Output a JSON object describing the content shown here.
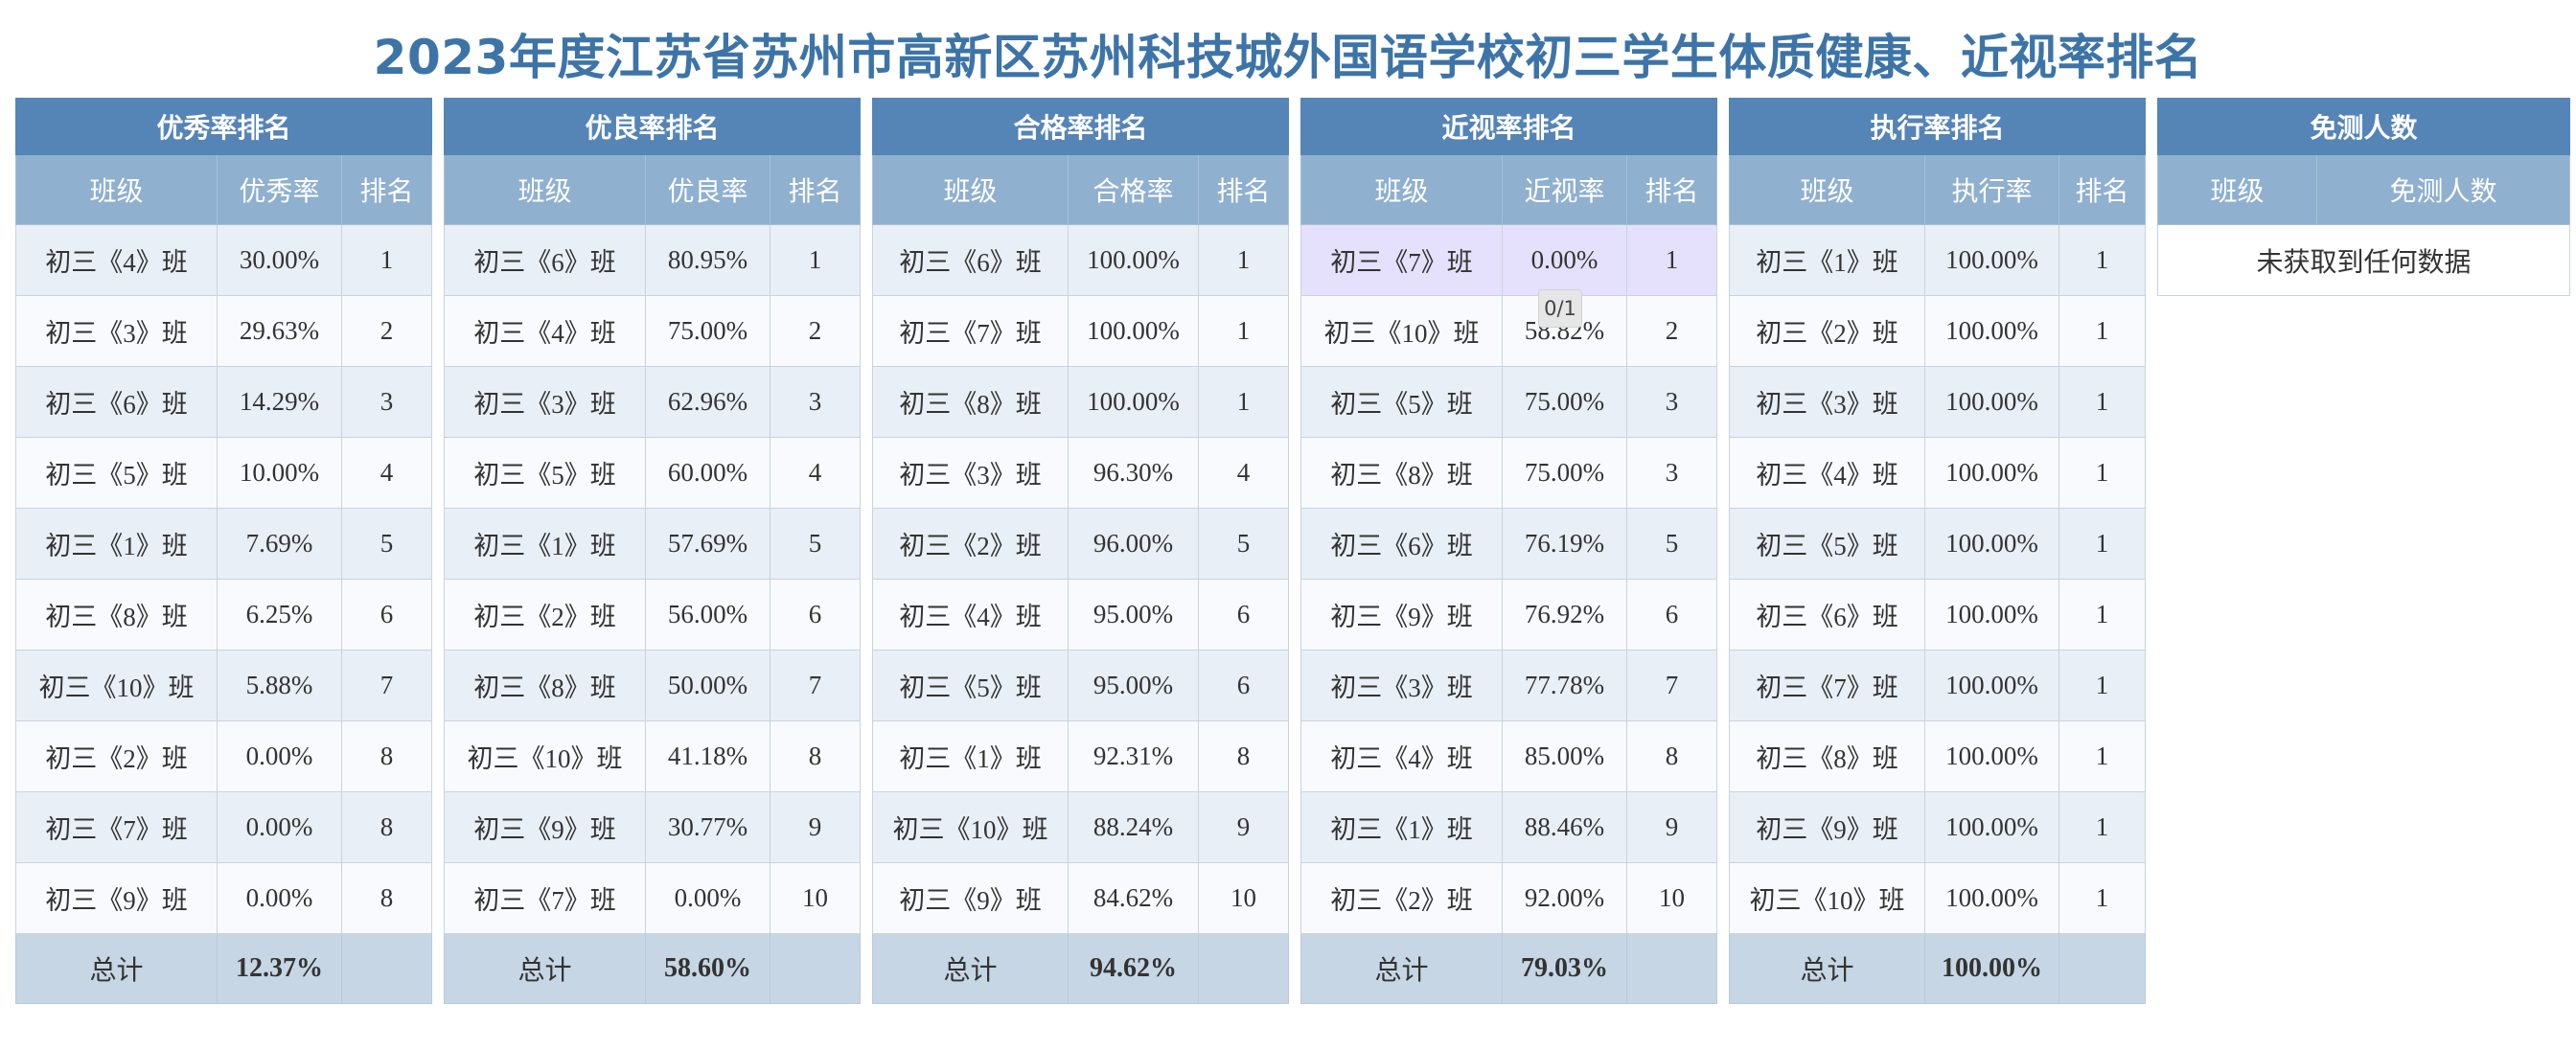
{
  "title": "2023年度江苏省苏州市高新区苏州科技城外国语学校初三学生体质健康、近视率排名",
  "tooltip": "0/1",
  "tables": [
    {
      "key": "excellent",
      "title": "优秀率排名",
      "headers": [
        "班级",
        "优秀率",
        "排名"
      ],
      "rows": [
        [
          "初三《4》班",
          "30.00%",
          "1"
        ],
        [
          "初三《3》班",
          "29.63%",
          "2"
        ],
        [
          "初三《6》班",
          "14.29%",
          "3"
        ],
        [
          "初三《5》班",
          "10.00%",
          "4"
        ],
        [
          "初三《1》班",
          "7.69%",
          "5"
        ],
        [
          "初三《8》班",
          "6.25%",
          "6"
        ],
        [
          "初三《10》班",
          "5.88%",
          "7"
        ],
        [
          "初三《2》班",
          "0.00%",
          "8"
        ],
        [
          "初三《7》班",
          "0.00%",
          "8"
        ],
        [
          "初三《9》班",
          "0.00%",
          "8"
        ]
      ],
      "total_label": "总计",
      "total_value": "12.37%"
    },
    {
      "key": "good",
      "title": "优良率排名",
      "headers": [
        "班级",
        "优良率",
        "排名"
      ],
      "rows": [
        [
          "初三《6》班",
          "80.95%",
          "1"
        ],
        [
          "初三《4》班",
          "75.00%",
          "2"
        ],
        [
          "初三《3》班",
          "62.96%",
          "3"
        ],
        [
          "初三《5》班",
          "60.00%",
          "4"
        ],
        [
          "初三《1》班",
          "57.69%",
          "5"
        ],
        [
          "初三《2》班",
          "56.00%",
          "6"
        ],
        [
          "初三《8》班",
          "50.00%",
          "7"
        ],
        [
          "初三《10》班",
          "41.18%",
          "8"
        ],
        [
          "初三《9》班",
          "30.77%",
          "9"
        ],
        [
          "初三《7》班",
          "0.00%",
          "10"
        ]
      ],
      "total_label": "总计",
      "total_value": "58.60%"
    },
    {
      "key": "pass",
      "title": "合格率排名",
      "headers": [
        "班级",
        "合格率",
        "排名"
      ],
      "rows": [
        [
          "初三《6》班",
          "100.00%",
          "1"
        ],
        [
          "初三《7》班",
          "100.00%",
          "1"
        ],
        [
          "初三《8》班",
          "100.00%",
          "1"
        ],
        [
          "初三《3》班",
          "96.30%",
          "4"
        ],
        [
          "初三《2》班",
          "96.00%",
          "5"
        ],
        [
          "初三《4》班",
          "95.00%",
          "6"
        ],
        [
          "初三《5》班",
          "95.00%",
          "6"
        ],
        [
          "初三《1》班",
          "92.31%",
          "8"
        ],
        [
          "初三《10》班",
          "88.24%",
          "9"
        ],
        [
          "初三《9》班",
          "84.62%",
          "10"
        ]
      ],
      "total_label": "总计",
      "total_value": "94.62%"
    },
    {
      "key": "myopia",
      "title": "近视率排名",
      "headers": [
        "班级",
        "近视率",
        "排名"
      ],
      "highlight_row": 0,
      "rows": [
        [
          "初三《7》班",
          "0.00%",
          "1"
        ],
        [
          "初三《10》班",
          "58.82%",
          "2"
        ],
        [
          "初三《5》班",
          "75.00%",
          "3"
        ],
        [
          "初三《8》班",
          "75.00%",
          "3"
        ],
        [
          "初三《6》班",
          "76.19%",
          "5"
        ],
        [
          "初三《9》班",
          "76.92%",
          "6"
        ],
        [
          "初三《3》班",
          "77.78%",
          "7"
        ],
        [
          "初三《4》班",
          "85.00%",
          "8"
        ],
        [
          "初三《1》班",
          "88.46%",
          "9"
        ],
        [
          "初三《2》班",
          "92.00%",
          "10"
        ]
      ],
      "total_label": "总计",
      "total_value": "79.03%"
    },
    {
      "key": "execution",
      "title": "执行率排名",
      "headers": [
        "班级",
        "执行率",
        "排名"
      ],
      "rows": [
        [
          "初三《1》班",
          "100.00%",
          "1"
        ],
        [
          "初三《2》班",
          "100.00%",
          "1"
        ],
        [
          "初三《3》班",
          "100.00%",
          "1"
        ],
        [
          "初三《4》班",
          "100.00%",
          "1"
        ],
        [
          "初三《5》班",
          "100.00%",
          "1"
        ],
        [
          "初三《6》班",
          "100.00%",
          "1"
        ],
        [
          "初三《7》班",
          "100.00%",
          "1"
        ],
        [
          "初三《8》班",
          "100.00%",
          "1"
        ],
        [
          "初三《9》班",
          "100.00%",
          "1"
        ],
        [
          "初三《10》班",
          "100.00%",
          "1"
        ]
      ],
      "total_label": "总计",
      "total_value": "100.00%"
    }
  ],
  "exempt": {
    "title": "免测人数",
    "headers": [
      "班级",
      "免测人数"
    ],
    "empty_text": "未获取到任何数据"
  }
}
